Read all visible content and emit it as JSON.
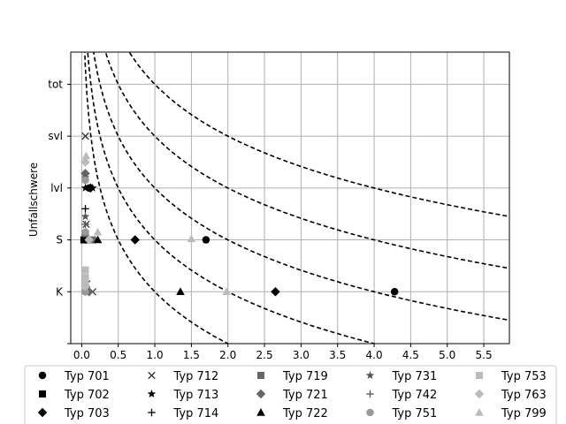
{
  "chart_data": {
    "type": "scatter",
    "title": "",
    "xlabel": "",
    "ylabel": "Unfallschwere",
    "xlim": [
      -0.15,
      5.85
    ],
    "ylim": [
      -1.0,
      4.62
    ],
    "grid": true,
    "x_ticks": [
      0.0,
      0.5,
      1.0,
      1.5,
      2.0,
      2.5,
      3.0,
      3.5,
      4.0,
      4.5,
      5.0,
      5.5
    ],
    "x_tick_labels": [
      "0.0",
      "0.5",
      "1.0",
      "1.5",
      "2.0",
      "2.5",
      "3.0",
      "3.5",
      "4.0",
      "4.5",
      "5.0",
      "5.5"
    ],
    "y_ticks": [
      -1,
      0,
      1,
      2,
      3,
      4
    ],
    "y_tick_labels": [
      "",
      "K",
      "S",
      "lvl",
      "svl",
      "tot"
    ],
    "legend_position": "bottom",
    "legend_columns": 5,
    "reference_curves": [
      {
        "c": 1.0,
        "style": "dashed",
        "color": "#000000"
      },
      {
        "c": 2.0,
        "style": "dashed",
        "color": "#000000"
      },
      {
        "c": 3.0,
        "style": "dashed",
        "color": "#000000"
      },
      {
        "c": 4.0,
        "style": "dashed",
        "color": "#000000"
      },
      {
        "c": 5.0,
        "style": "dashed",
        "color": "#000000"
      }
    ],
    "series": [
      {
        "name": "Typ 701",
        "marker": "circle",
        "color": "#000000",
        "points": [
          [
            0.05,
            0
          ],
          [
            0.1,
            2
          ],
          [
            1.7,
            1
          ],
          [
            4.28,
            0
          ]
        ]
      },
      {
        "name": "Typ 702",
        "marker": "square",
        "color": "#000000",
        "points": [
          [
            0.03,
            1
          ]
        ]
      },
      {
        "name": "Typ 703",
        "marker": "diamond",
        "color": "#000000",
        "points": [
          [
            0.12,
            2
          ],
          [
            0.73,
            1
          ],
          [
            2.65,
            0
          ]
        ]
      },
      {
        "name": "Typ 712",
        "marker": "x",
        "color": "#333333",
        "points": [
          [
            0.05,
            3
          ],
          [
            0.06,
            1.3
          ],
          [
            0.07,
            0.15
          ],
          [
            0.15,
            0
          ]
        ]
      },
      {
        "name": "Typ 713",
        "marker": "star",
        "color": "#000000",
        "points": [
          [
            0.05,
            2
          ],
          [
            0.15,
            2
          ]
        ]
      },
      {
        "name": "Typ 714",
        "marker": "plus",
        "color": "#000000",
        "points": [
          [
            0.05,
            1.6
          ],
          [
            0.05,
            1
          ]
        ]
      },
      {
        "name": "Typ 719",
        "marker": "square",
        "color": "#666666",
        "points": [
          [
            0.05,
            1.12
          ],
          [
            0.15,
            1
          ]
        ]
      },
      {
        "name": "Typ 721",
        "marker": "diamond",
        "color": "#666666",
        "points": [
          [
            0.05,
            2.28
          ],
          [
            0.1,
            0
          ]
        ]
      },
      {
        "name": "Typ 722",
        "marker": "triangle",
        "color": "#000000",
        "points": [
          [
            0.22,
            1
          ],
          [
            1.35,
            0
          ]
        ]
      },
      {
        "name": "Typ 731",
        "marker": "star",
        "color": "#555555",
        "points": [
          [
            0.05,
            1.45
          ],
          [
            0.05,
            2.2
          ]
        ]
      },
      {
        "name": "Typ 742",
        "marker": "plus",
        "color": "#555555",
        "points": [
          [
            0.05,
            2.5
          ],
          [
            0.05,
            1.3
          ]
        ]
      },
      {
        "name": "Typ 751",
        "marker": "circle",
        "color": "#999999",
        "points": [
          [
            0.05,
            0
          ],
          [
            0.05,
            2.15
          ],
          [
            0.05,
            1.15
          ]
        ]
      },
      {
        "name": "Typ 753",
        "marker": "square",
        "color": "#bbbbbb",
        "points": [
          [
            0.05,
            0.42
          ],
          [
            0.05,
            0.28
          ],
          [
            0.05,
            0.2
          ]
        ]
      },
      {
        "name": "Typ 763",
        "marker": "diamond",
        "color": "#bbbbbb",
        "points": [
          [
            0.05,
            2.5
          ],
          [
            0.05,
            0.1
          ],
          [
            0.1,
            1
          ]
        ]
      },
      {
        "name": "Typ 799",
        "marker": "triangle",
        "color": "#bbbbbb",
        "points": [
          [
            0.06,
            2.62
          ],
          [
            0.22,
            1.15
          ],
          [
            1.5,
            1.02
          ],
          [
            1.98,
            0
          ]
        ]
      }
    ]
  }
}
